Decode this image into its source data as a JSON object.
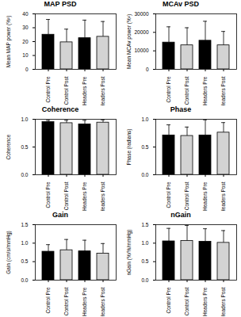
{
  "chart_data": [
    {
      "type": "bar",
      "title": "MAP PSD",
      "ylabel": "Mean MAP power (%²)",
      "categories": [
        "Control Pre",
        "Control Post",
        "Headers Pre",
        "Headers Post"
      ],
      "values": [
        25,
        19.5,
        22.5,
        23.5
      ],
      "errors": [
        11,
        9.5,
        13,
        11
      ],
      "colors": [
        "#000000",
        "#d3d3d3",
        "#000000",
        "#d3d3d3"
      ],
      "ylim": [
        0,
        40
      ],
      "yticks": [
        0,
        10,
        20,
        30,
        40
      ]
    },
    {
      "type": "bar",
      "title": "MCAv PSD",
      "ylabel": "Mean MCAv power (%²)",
      "categories": [
        "Control Pre",
        "Control Post",
        "Headers Pre",
        "Headers Post"
      ],
      "values": [
        14500,
        13000,
        15500,
        13000
      ],
      "errors": [
        8500,
        9500,
        10500,
        7500
      ],
      "colors": [
        "#000000",
        "#d3d3d3",
        "#000000",
        "#d3d3d3"
      ],
      "ylim": [
        0,
        30000
      ],
      "yticks": [
        0,
        10000,
        20000,
        30000
      ]
    },
    {
      "type": "bar",
      "title": "Coherence",
      "ylabel": "Coherence",
      "categories": [
        "Control Pre",
        "Control Post",
        "Headers Pre",
        "Headers Post"
      ],
      "values": [
        0.95,
        0.93,
        0.91,
        0.94
      ],
      "errors": [
        0.03,
        0.05,
        0.07,
        0.05
      ],
      "colors": [
        "#000000",
        "#d3d3d3",
        "#000000",
        "#d3d3d3"
      ],
      "ylim": [
        0,
        1.0
      ],
      "yticks": [
        {
          "value": 0,
          "label": "0.0"
        },
        0.5,
        {
          "value": 1,
          "label": "1.0"
        }
      ]
    },
    {
      "type": "bar",
      "title": "Phase",
      "ylabel": "Phase (radians)",
      "categories": [
        "Control Pre",
        "Control Post",
        "Headers Pre",
        "Headers Post"
      ],
      "values": [
        0.71,
        0.7,
        0.71,
        0.76
      ],
      "errors": [
        0.19,
        0.16,
        0.28,
        0.18
      ],
      "colors": [
        "#000000",
        "#d3d3d3",
        "#000000",
        "#d3d3d3"
      ],
      "ylim": [
        0,
        1.0
      ],
      "yticks": [
        {
          "value": 0,
          "label": "0.0"
        },
        0.5,
        {
          "value": 1,
          "label": "1.0"
        }
      ]
    },
    {
      "type": "bar",
      "title": "Gain",
      "ylabel": "Gain (cm/s/mmHg)",
      "categories": [
        "Control Pre",
        "Control Post",
        "Headers Pre",
        "Headers Post"
      ],
      "values": [
        0.77,
        0.81,
        0.78,
        0.72
      ],
      "errors": [
        0.19,
        0.29,
        0.3,
        0.27
      ],
      "colors": [
        "#000000",
        "#d3d3d3",
        "#000000",
        "#d3d3d3"
      ],
      "ylim": [
        0,
        1.5
      ],
      "yticks": [
        {
          "value": 0,
          "label": "0.0"
        },
        0.5,
        {
          "value": 1,
          "label": "1.0"
        },
        1.5
      ]
    },
    {
      "type": "bar",
      "title": "nGain",
      "ylabel": "nGain (%/%/mmHg)",
      "categories": [
        "Control Pre",
        "Control Post",
        "Headers Pre",
        "Headers Post"
      ],
      "values": [
        1.05,
        1.06,
        1.04,
        1.01
      ],
      "errors": [
        0.35,
        0.42,
        0.35,
        0.33
      ],
      "colors": [
        "#000000",
        "#d3d3d3",
        "#000000",
        "#d3d3d3"
      ],
      "ylim": [
        0,
        1.5
      ],
      "yticks": [
        {
          "value": 0,
          "label": "0.0"
        },
        0.5,
        {
          "value": 1,
          "label": "1.0"
        },
        1.5
      ]
    }
  ]
}
